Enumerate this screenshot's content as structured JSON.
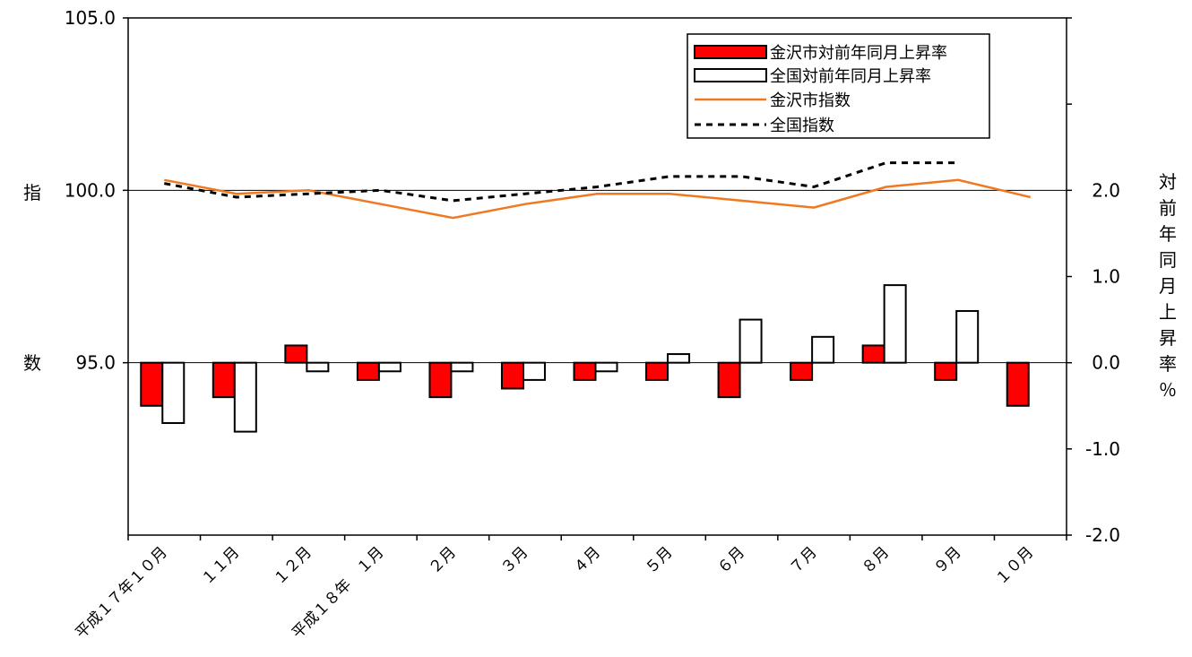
{
  "chart_data": {
    "type": "bar+line",
    "categories": [
      "平成１７年１０月",
      "１１月",
      "１２月",
      "平成１８年　１月",
      "２月",
      "３月",
      "４月",
      "５月",
      "６月",
      "７月",
      "８月",
      "９月",
      "１０月"
    ],
    "left_axis": {
      "label": "指数",
      "range": [
        90.0,
        105.0
      ],
      "ticks": [
        "105.0",
        "100.0",
        "95.0"
      ],
      "tick_values": [
        105,
        100,
        95
      ]
    },
    "right_axis": {
      "label": "対前年同月上昇率％",
      "range": [
        -2.0,
        4.0
      ],
      "ticks": [
        "2.0",
        "1.0",
        "0.0",
        "-1.0",
        "-2.0"
      ],
      "tick_values": [
        2,
        1,
        0,
        -1,
        -2
      ]
    },
    "series": [
      {
        "name": "金沢市対前年同月上昇率",
        "type": "bar",
        "axis": "right",
        "color": "#ff0000",
        "values": [
          -0.5,
          -0.4,
          0.2,
          -0.2,
          -0.4,
          -0.3,
          -0.2,
          -0.2,
          -0.4,
          -0.2,
          0.2,
          -0.2,
          -0.5
        ]
      },
      {
        "name": "全国対前年同月上昇率",
        "type": "bar",
        "axis": "right",
        "color": "#ffffff",
        "values": [
          -0.7,
          -0.8,
          -0.1,
          -0.1,
          -0.1,
          -0.2,
          -0.1,
          0.1,
          0.5,
          0.3,
          0.9,
          0.6,
          null
        ]
      },
      {
        "name": "金沢市指数",
        "type": "line",
        "axis": "left",
        "color": "#f07820",
        "values": [
          100.3,
          99.9,
          100.0,
          99.6,
          99.2,
          99.6,
          99.9,
          99.9,
          99.7,
          99.5,
          100.1,
          100.3,
          99.8
        ]
      },
      {
        "name": "全国指数",
        "type": "line",
        "axis": "left",
        "color": "#000000",
        "dash": true,
        "values": [
          100.2,
          99.8,
          99.9,
          100.0,
          99.7,
          99.9,
          100.1,
          100.4,
          100.4,
          100.1,
          100.8,
          100.8,
          null
        ]
      }
    ],
    "grid": "horizontal",
    "legend_position": "top-right"
  }
}
